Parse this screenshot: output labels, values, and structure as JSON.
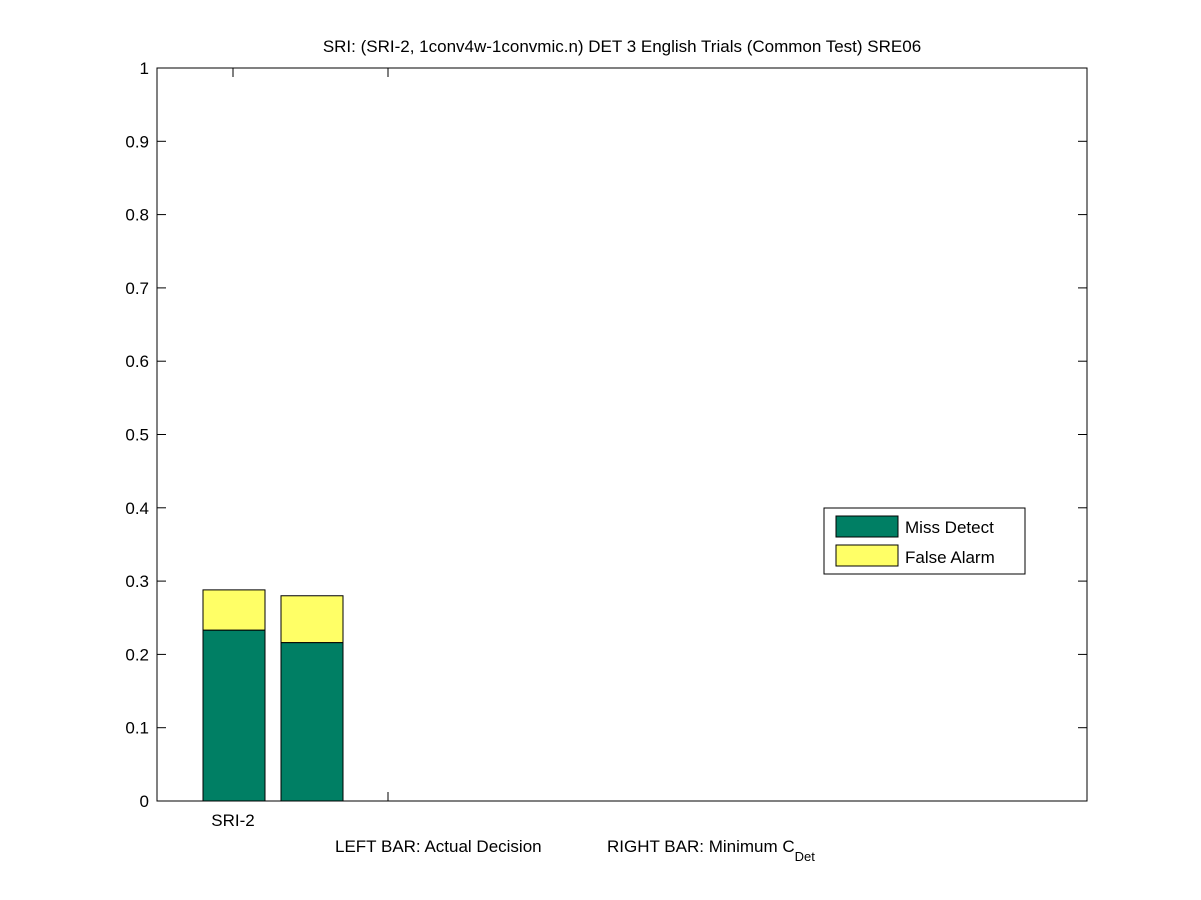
{
  "chart_data": {
    "type": "bar",
    "stacked": true,
    "title": "SRI: (SRI-2, 1conv4w-1convmic.n) DET 3 English Trials (Common Test) SRE06",
    "xlabel_left": "LEFT BAR: Actual Decision",
    "xlabel_right": "RIGHT BAR: Minimum C",
    "xlabel_right_subscript": "Det",
    "categories": [
      "SRI-2"
    ],
    "bars": [
      {
        "label": "Actual Decision",
        "miss_detect": 0.233,
        "false_alarm": 0.055,
        "total": 0.288
      },
      {
        "label": "Minimum CDet",
        "miss_detect": 0.216,
        "false_alarm": 0.064,
        "total": 0.28
      }
    ],
    "series": [
      {
        "name": "Miss Detect",
        "color": "#007f64"
      },
      {
        "name": "False Alarm",
        "color": "#ffff66"
      }
    ],
    "ylim": [
      0,
      1
    ],
    "yticks": [
      "0",
      "0.1",
      "0.2",
      "0.3",
      "0.4",
      "0.5",
      "0.6",
      "0.7",
      "0.8",
      "0.9",
      "1"
    ],
    "grid": false,
    "legend": "right"
  }
}
